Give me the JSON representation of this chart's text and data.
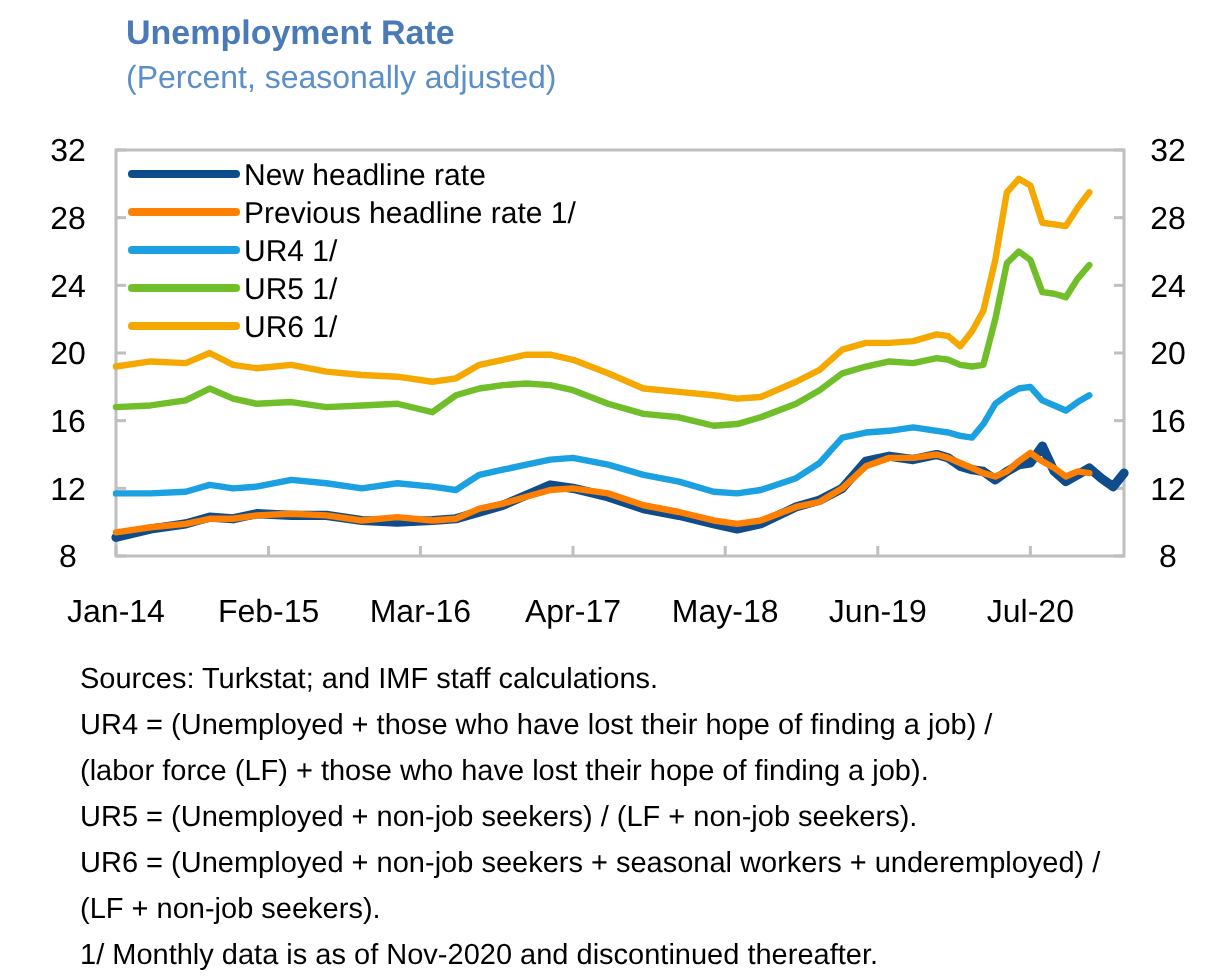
{
  "chart_data": {
    "type": "line",
    "title": "Unemployment Rate",
    "subtitle": "(Percent, seasonally adjusted)",
    "x": [
      "2014-01",
      "2014-04",
      "2014-07",
      "2014-09",
      "2014-11",
      "2015-01",
      "2015-04",
      "2015-07",
      "2015-10",
      "2016-01",
      "2016-04",
      "2016-06",
      "2016-08",
      "2016-10",
      "2016-12",
      "2017-02",
      "2017-04",
      "2017-07",
      "2017-10",
      "2018-01",
      "2018-04",
      "2018-06",
      "2018-08",
      "2018-11",
      "2019-01",
      "2019-03",
      "2019-05",
      "2019-07",
      "2019-09",
      "2019-11",
      "2019-12",
      "2020-01",
      "2020-02",
      "2020-03",
      "2020-04",
      "2020-05",
      "2020-06",
      "2020-07",
      "2020-08",
      "2020-09",
      "2020-10",
      "2020-11",
      "2020-12",
      "2021-01",
      "2021-02",
      "2021-03"
    ],
    "series": [
      {
        "name": "New headline rate",
        "color": "#0f4c8c",
        "values": [
          9.1,
          9.6,
          9.9,
          10.3,
          10.2,
          10.5,
          10.4,
          10.4,
          10.1,
          10.0,
          10.1,
          10.2,
          10.6,
          11.0,
          11.6,
          12.2,
          12.0,
          11.5,
          10.8,
          10.4,
          9.9,
          9.6,
          9.9,
          10.9,
          11.3,
          12.0,
          13.6,
          13.9,
          13.7,
          14.0,
          13.8,
          13.3,
          13.1,
          13.0,
          12.5,
          13.0,
          13.4,
          13.5,
          14.5,
          13.0,
          12.4,
          12.8,
          13.2,
          12.6,
          12.1,
          12.9
        ]
      },
      {
        "name": "Previous headline rate 1/",
        "color": "#ff8000",
        "values": [
          9.4,
          9.7,
          9.9,
          10.2,
          10.2,
          10.4,
          10.5,
          10.4,
          10.1,
          10.3,
          10.1,
          10.2,
          10.8,
          11.1,
          11.5,
          11.9,
          12.0,
          11.7,
          11.0,
          10.6,
          10.1,
          9.9,
          10.1,
          10.9,
          11.2,
          12.0,
          13.3,
          13.8,
          13.8,
          14.0,
          13.8,
          13.5,
          13.2,
          12.9,
          12.7,
          13.0,
          13.6,
          14.1,
          13.6,
          13.2,
          12.7,
          13.0,
          12.9,
          null,
          null,
          null
        ]
      },
      {
        "name": "UR4 1/",
        "color": "#1ba1e2",
        "values": [
          11.7,
          11.7,
          11.8,
          12.2,
          12.0,
          12.1,
          12.5,
          12.3,
          12.0,
          12.3,
          12.1,
          11.9,
          12.8,
          13.1,
          13.4,
          13.7,
          13.8,
          13.4,
          12.8,
          12.4,
          11.8,
          11.7,
          11.9,
          12.6,
          13.5,
          15.0,
          15.3,
          15.4,
          15.6,
          15.4,
          15.3,
          15.1,
          15.0,
          15.8,
          17.0,
          17.5,
          17.9,
          18.0,
          17.2,
          16.9,
          16.6,
          17.1,
          17.5,
          null,
          null,
          null
        ]
      },
      {
        "name": "UR5 1/",
        "color": "#70bf2a",
        "values": [
          16.8,
          16.9,
          17.2,
          17.9,
          17.3,
          17.0,
          17.1,
          16.8,
          16.9,
          17.0,
          16.5,
          17.5,
          17.9,
          18.1,
          18.2,
          18.1,
          17.8,
          17.0,
          16.4,
          16.2,
          15.7,
          15.8,
          16.2,
          17.0,
          17.8,
          18.8,
          19.2,
          19.5,
          19.4,
          19.7,
          19.6,
          19.3,
          19.2,
          19.3,
          22.0,
          25.3,
          26.0,
          25.5,
          23.6,
          23.5,
          23.3,
          24.4,
          25.2,
          null,
          null,
          null
        ]
      },
      {
        "name": "UR6 1/",
        "color": "#f5a900",
        "values": [
          19.2,
          19.5,
          19.4,
          20.0,
          19.3,
          19.1,
          19.3,
          18.9,
          18.7,
          18.6,
          18.3,
          18.5,
          19.3,
          19.6,
          19.9,
          19.9,
          19.6,
          18.8,
          17.9,
          17.7,
          17.5,
          17.3,
          17.4,
          18.3,
          19.0,
          20.2,
          20.6,
          20.6,
          20.7,
          21.1,
          21.0,
          20.4,
          21.3,
          22.5,
          25.5,
          29.5,
          30.3,
          29.9,
          27.7,
          27.6,
          27.5,
          28.6,
          29.5,
          null,
          null,
          null
        ]
      }
    ],
    "xlim": [
      "2014-01",
      "2021-03"
    ],
    "xticks": [
      {
        "value": "2014-01",
        "label": "Jan-14"
      },
      {
        "value": "2015-02",
        "label": "Feb-15"
      },
      {
        "value": "2016-03",
        "label": "Mar-16"
      },
      {
        "value": "2017-04",
        "label": "Apr-17"
      },
      {
        "value": "2018-05",
        "label": "May-18"
      },
      {
        "value": "2019-06",
        "label": "Jun-19"
      },
      {
        "value": "2020-07",
        "label": "Jul-20"
      }
    ],
    "ylim": [
      8,
      32
    ],
    "yticks": [
      8,
      12,
      16,
      20,
      24,
      28,
      32
    ],
    "y2lim": [
      8,
      32
    ],
    "y2ticks": [
      8,
      12,
      16,
      20,
      24,
      28,
      32
    ],
    "grid": false,
    "legend": "top left",
    "marker": "none",
    "line_style": "solid",
    "annotations": [
      "Sources: Turkstat; and IMF staff calculations.",
      "UR4 = (Unemployed + those who have lost their hope of finding a job) / (labor force (LF) + those who have lost their hope of finding a job).",
      "UR5 = (Unemployed + non-job seekers) / (LF + non-job seekers).",
      "UR6 = (Unemployed + non-job seekers + seasonal workers + underemployed) / (LF + non-job seekers).",
      "1/ Monthly data is as of Nov-2020 and discontinued thereafter."
    ]
  }
}
